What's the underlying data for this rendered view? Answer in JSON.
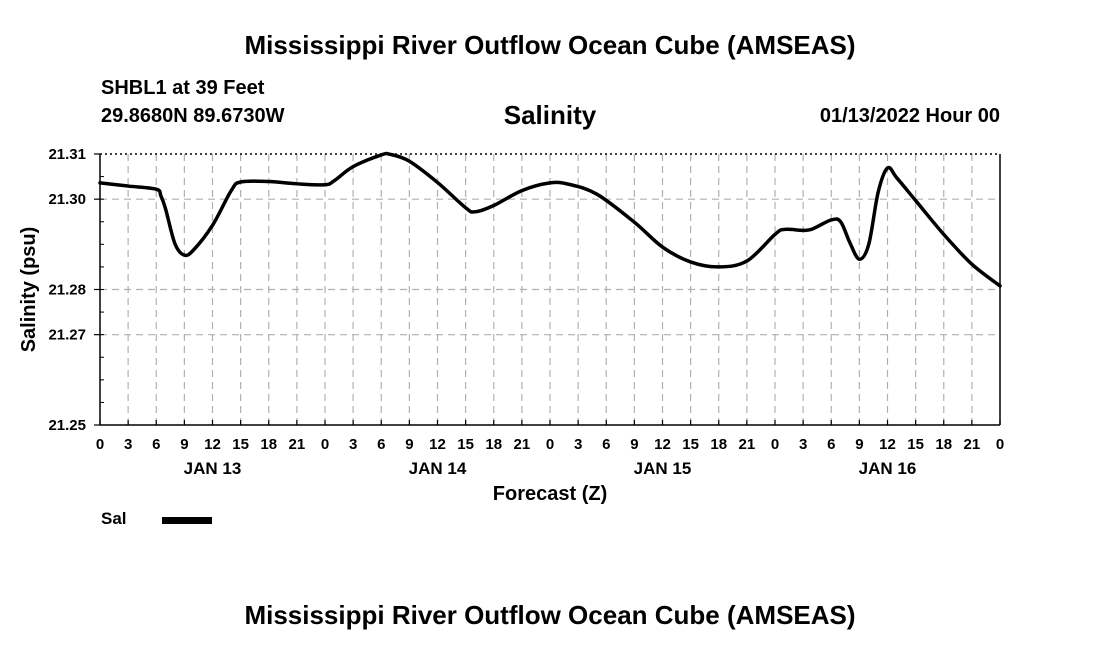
{
  "header": {
    "title": "Mississippi River Outflow Ocean Cube (AMSEAS)",
    "station": "SHBL1 at 39 Feet",
    "location": "29.8680N  89.6730W",
    "chart_title": "Salinity",
    "date": "01/13/2022 Hour 00"
  },
  "legend": {
    "label": "Sal"
  },
  "footer": {
    "title": "Mississippi River Outflow Ocean Cube (AMSEAS)"
  },
  "colors": {
    "line": "#000000",
    "grid": "#b0b0b0",
    "background": "#ffffff"
  },
  "chart_data": {
    "type": "line",
    "title": "Salinity",
    "xlabel": "Forecast (Z)",
    "ylabel": "Salinity (psu)",
    "xlim": [
      0,
      96
    ],
    "ylim": [
      21.25,
      21.31
    ],
    "y_ticks": [
      "21.25",
      "21.27",
      "21.28",
      "21.30",
      "21.31"
    ],
    "x_tick_labels": [
      "0",
      "3",
      "6",
      "9",
      "12",
      "15",
      "18",
      "21",
      "0",
      "3",
      "6",
      "9",
      "12",
      "15",
      "18",
      "21",
      "0",
      "3",
      "6",
      "9",
      "12",
      "15",
      "18",
      "21",
      "0",
      "3",
      "6",
      "9",
      "12",
      "15",
      "18",
      "21",
      "0"
    ],
    "day_labels": [
      {
        "label": "JAN 13",
        "hour": 12
      },
      {
        "label": "JAN 14",
        "hour": 36
      },
      {
        "label": "JAN 15",
        "hour": 60
      },
      {
        "label": "JAN 16",
        "hour": 84
      }
    ],
    "series": [
      {
        "name": "Sal",
        "x": [
          0,
          3,
          6,
          6.5,
          7,
          8,
          9,
          10,
          12,
          14,
          15,
          18,
          21,
          24,
          25,
          27,
          30,
          31,
          33,
          36,
          39,
          40,
          42,
          45,
          48,
          50,
          53,
          57,
          60,
          63,
          66,
          69,
          72,
          73,
          75,
          76,
          78,
          79,
          80,
          81,
          82,
          83,
          84,
          85,
          87,
          90,
          93,
          96
        ],
        "y": [
          21.3036,
          21.3029,
          21.3022,
          21.3007,
          21.2978,
          21.2901,
          21.2876,
          21.2888,
          21.2942,
          21.3019,
          21.3038,
          21.3039,
          21.3034,
          21.3032,
          21.3041,
          21.3072,
          21.3098,
          21.3099,
          21.3084,
          21.3037,
          21.2981,
          21.2972,
          21.2986,
          21.3019,
          21.3036,
          21.3033,
          21.3011,
          21.2949,
          21.2894,
          21.2861,
          21.285,
          21.2863,
          21.2922,
          21.2933,
          21.2931,
          21.2934,
          21.2954,
          21.295,
          21.2903,
          21.2867,
          21.29,
          21.3015,
          21.3069,
          21.3047,
          21.2997,
          21.2922,
          21.2856,
          21.2808
        ]
      }
    ]
  }
}
